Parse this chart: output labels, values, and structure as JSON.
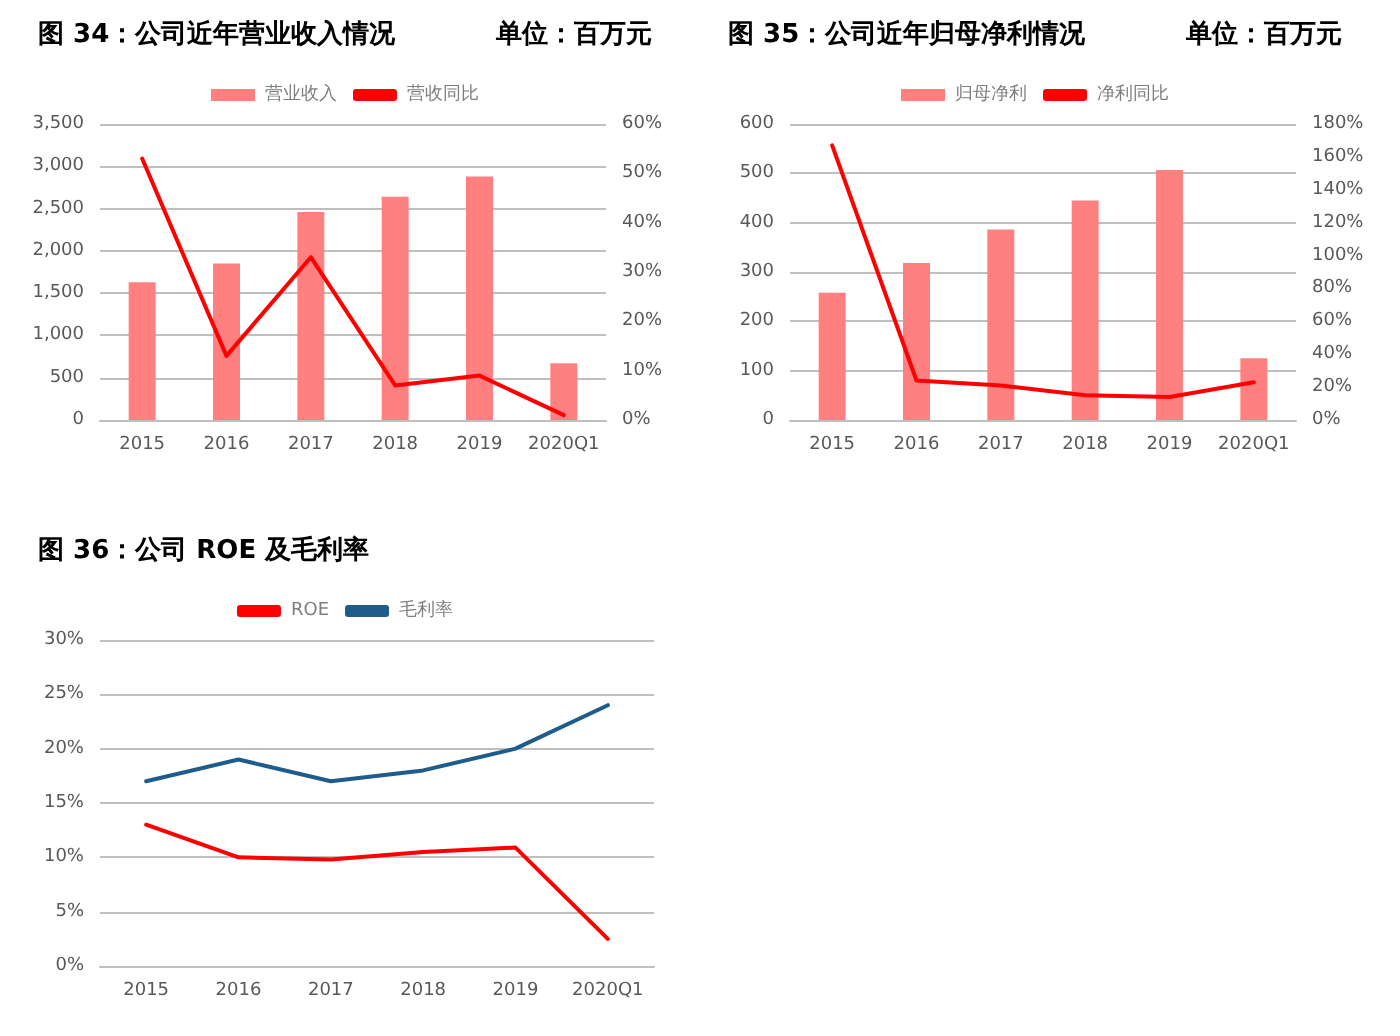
{
  "chart_data": [
    {
      "type": "bar",
      "title": "图 34：公司近年营业收入情况",
      "subtitle": "单位：百万元",
      "categories": [
        "2015",
        "2016",
        "2017",
        "2018",
        "2019",
        "2020Q1"
      ],
      "series": [
        {
          "name": "营业收入",
          "color": "#ff8080",
          "values": [
            1630,
            1850,
            2460,
            2640,
            2880,
            670
          ]
        },
        {
          "name": "营收同比",
          "type": "line",
          "axis": "y2",
          "color": "#ff0000",
          "values": [
            53,
            13,
            33,
            7,
            9,
            1
          ]
        }
      ],
      "ylim": [
        0,
        3500
      ],
      "yticks": [
        0,
        {
          "value": 500,
          "label": "500"
        },
        {
          "value": 1000,
          "label": "1,000"
        },
        {
          "value": 1500,
          "label": "1,500"
        },
        {
          "value": 2000,
          "label": "2,000"
        },
        {
          "value": 2500,
          "label": "2,500"
        },
        {
          "value": 3000,
          "label": "3,000"
        },
        {
          "value": 3500,
          "label": "3,500"
        }
      ],
      "y2lim": [
        0,
        60
      ],
      "y2ticks": [
        {
          "value": 0,
          "label": "0%"
        },
        {
          "value": 10,
          "label": "10%"
        },
        {
          "value": 20,
          "label": "20%"
        },
        {
          "value": 30,
          "label": "30%"
        },
        {
          "value": 40,
          "label": "40%"
        },
        {
          "value": 50,
          "label": "50%"
        },
        {
          "value": 60,
          "label": "60%"
        }
      ],
      "grid": "y",
      "legend": "top",
      "marker": "none",
      "line_style": "solid"
    },
    {
      "type": "bar",
      "title": "图 35：公司近年归母净利情况",
      "subtitle": "单位：百万元",
      "categories": [
        "2015",
        "2016",
        "2017",
        "2018",
        "2019",
        "2020Q1"
      ],
      "series": [
        {
          "name": "归母净利",
          "color": "#ff8080",
          "values": [
            258,
            318,
            386,
            445,
            507,
            125
          ]
        },
        {
          "name": "净利同比",
          "type": "line",
          "axis": "y2",
          "color": "#ff0000",
          "values": [
            167,
            24,
            21,
            15,
            14,
            23
          ]
        }
      ],
      "ylim": [
        0,
        600
      ],
      "yticks": [
        0,
        100,
        200,
        300,
        400,
        500,
        600
      ],
      "y2lim": [
        0,
        180
      ],
      "y2ticks": [
        {
          "value": 0,
          "label": "0%"
        },
        {
          "value": 20,
          "label": "20%"
        },
        {
          "value": 40,
          "label": "40%"
        },
        {
          "value": 60,
          "label": "60%"
        },
        {
          "value": 80,
          "label": "80%"
        },
        {
          "value": 100,
          "label": "100%"
        },
        {
          "value": 120,
          "label": "120%"
        },
        {
          "value": 140,
          "label": "140%"
        },
        {
          "value": 160,
          "label": "160%"
        },
        {
          "value": 180,
          "label": "180%"
        }
      ],
      "grid": "y",
      "legend": "top",
      "marker": "none",
      "line_style": "solid"
    },
    {
      "type": "line",
      "title": "图 36：公司 ROE 及毛利率",
      "categories": [
        "2015",
        "2016",
        "2017",
        "2018",
        "2019",
        "2020Q1"
      ],
      "series": [
        {
          "name": "ROE",
          "color": "#ff0000",
          "values": [
            13,
            10,
            9.8,
            10.5,
            10.9,
            2.5
          ]
        },
        {
          "name": "毛利率",
          "color": "#1f5c8b",
          "values": [
            17,
            19,
            17,
            18,
            20,
            24
          ]
        }
      ],
      "ylim": [
        0,
        30
      ],
      "yticks": [
        {
          "value": 0,
          "label": "0%"
        },
        {
          "value": 5,
          "label": "5%"
        },
        {
          "value": 10,
          "label": "10%"
        },
        {
          "value": 15,
          "label": "15%"
        },
        {
          "value": 20,
          "label": "20%"
        },
        {
          "value": 25,
          "label": "25%"
        },
        {
          "value": 30,
          "label": "30%"
        }
      ],
      "grid": "y",
      "legend": "top",
      "marker": "none",
      "line_style": "solid"
    }
  ]
}
